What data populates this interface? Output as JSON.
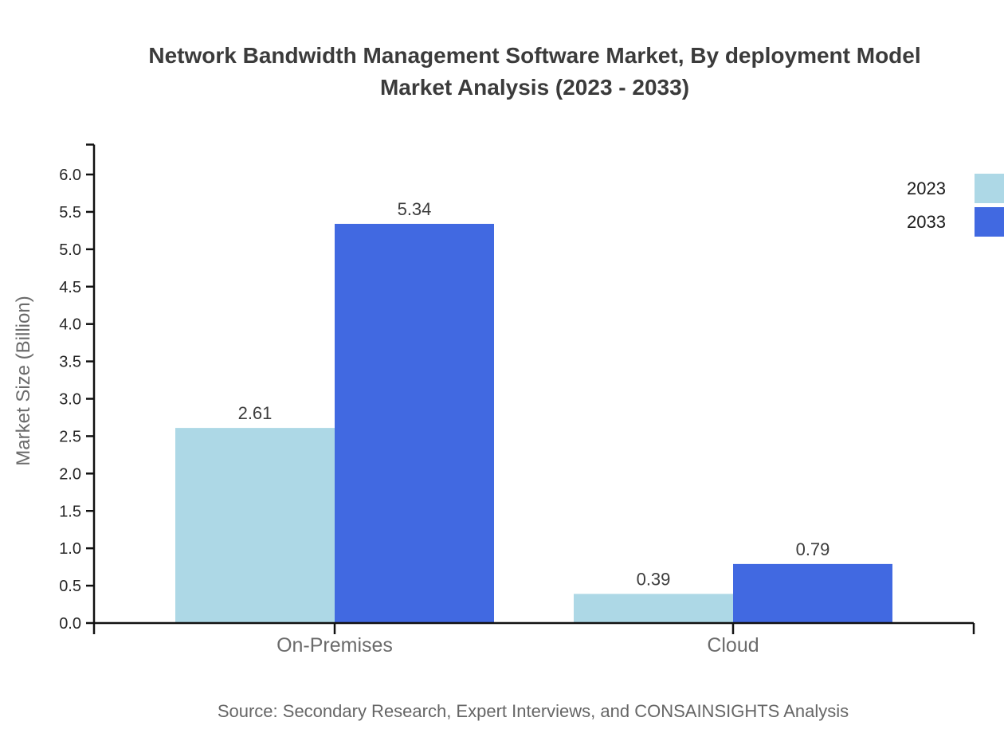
{
  "title_lines": [
    "Network Bandwidth Management Software Market, By deployment Model",
    "Market Analysis (2023 - 2033)"
  ],
  "source_note": "Source: Secondary Research, Expert Interviews, and CONSAINSIGHTS Analysis",
  "chart_data": {
    "type": "bar",
    "title": "Network Bandwidth Management Software Market, By deployment Model Market Analysis (2023 - 2033)",
    "categories": [
      "On-Premises",
      "Cloud"
    ],
    "series": [
      {
        "name": "2023",
        "color": "#ADD8E6",
        "values": [
          2.61,
          0.39
        ]
      },
      {
        "name": "2033",
        "color": "#4169E1",
        "values": [
          5.34,
          0.79
        ]
      }
    ],
    "value_labels": [
      [
        "2.61",
        "0.39"
      ],
      [
        "5.34",
        "0.79"
      ]
    ],
    "xlabel": "",
    "ylabel": "Market Size (Billion)",
    "ylim": [
      0,
      6.4
    ],
    "y_tick_step": 0.5,
    "y_ticks": [
      "0.0",
      "0.5",
      "1.0",
      "1.5",
      "2.0",
      "2.5",
      "3.0",
      "3.5",
      "4.0",
      "4.5",
      "5.0",
      "5.5",
      "6.0"
    ],
    "grid": false,
    "legend_position": "top-right",
    "colors": {
      "axis": "#111111",
      "tick_label": "#262626",
      "value_label": "#3d3d3d",
      "category_label": "#6b6b6b",
      "axis_title": "#6b6b6b"
    }
  }
}
